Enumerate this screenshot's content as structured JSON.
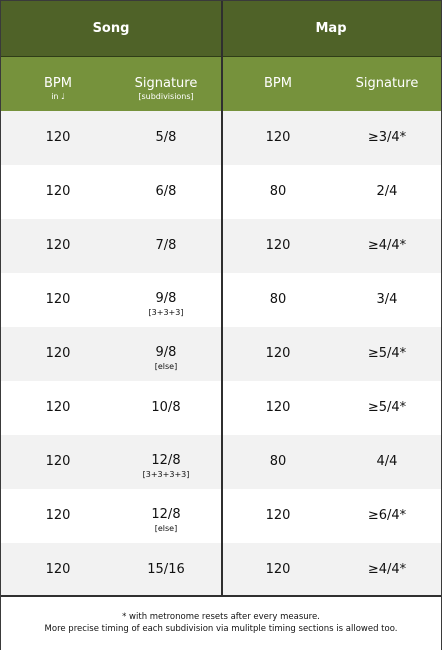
{
  "header": {
    "song_label": "Song",
    "map_label": "Map"
  },
  "subheader": {
    "song_bpm": "BPM",
    "song_bpm_note": "in ♩",
    "song_signature": "Signature",
    "song_signature_note": "[subdivisions]",
    "map_bpm": "BPM",
    "map_signature": "Signature"
  },
  "rows": [
    {
      "song_bpm": "120",
      "song_sig": "5/8",
      "song_sig_note": "",
      "map_bpm": "120",
      "map_sig": "≥3/4*"
    },
    {
      "song_bpm": "120",
      "song_sig": "6/8",
      "song_sig_note": "",
      "map_bpm": "80",
      "map_sig": "2/4"
    },
    {
      "song_bpm": "120",
      "song_sig": "7/8",
      "song_sig_note": "",
      "map_bpm": "120",
      "map_sig": "≥4/4*"
    },
    {
      "song_bpm": "120",
      "song_sig": "9/8",
      "song_sig_note": "[3+3+3]",
      "map_bpm": "80",
      "map_sig": "3/4"
    },
    {
      "song_bpm": "120",
      "song_sig": "9/8",
      "song_sig_note": "[else]",
      "map_bpm": "120",
      "map_sig": "≥5/4*"
    },
    {
      "song_bpm": "120",
      "song_sig": "10/8",
      "song_sig_note": "",
      "map_bpm": "120",
      "map_sig": "≥5/4*"
    },
    {
      "song_bpm": "120",
      "song_sig": "12/8",
      "song_sig_note": "[3+3+3+3]",
      "map_bpm": "80",
      "map_sig": "4/4"
    },
    {
      "song_bpm": "120",
      "song_sig": "12/8",
      "song_sig_note": "[else]",
      "map_bpm": "120",
      "map_sig": "≥6/4*"
    },
    {
      "song_bpm": "120",
      "song_sig": "15/16",
      "song_sig_note": "",
      "map_bpm": "120",
      "map_sig": "≥4/4*"
    }
  ],
  "footer": {
    "line1": "* with metronome resets after every measure.",
    "line2": "More precise timing of each subdivision via mulitple timing sections is allowed too."
  },
  "colors": {
    "header_dark": "#4f6228",
    "header_light": "#76923c",
    "row_shade": "#f2f2f2"
  }
}
